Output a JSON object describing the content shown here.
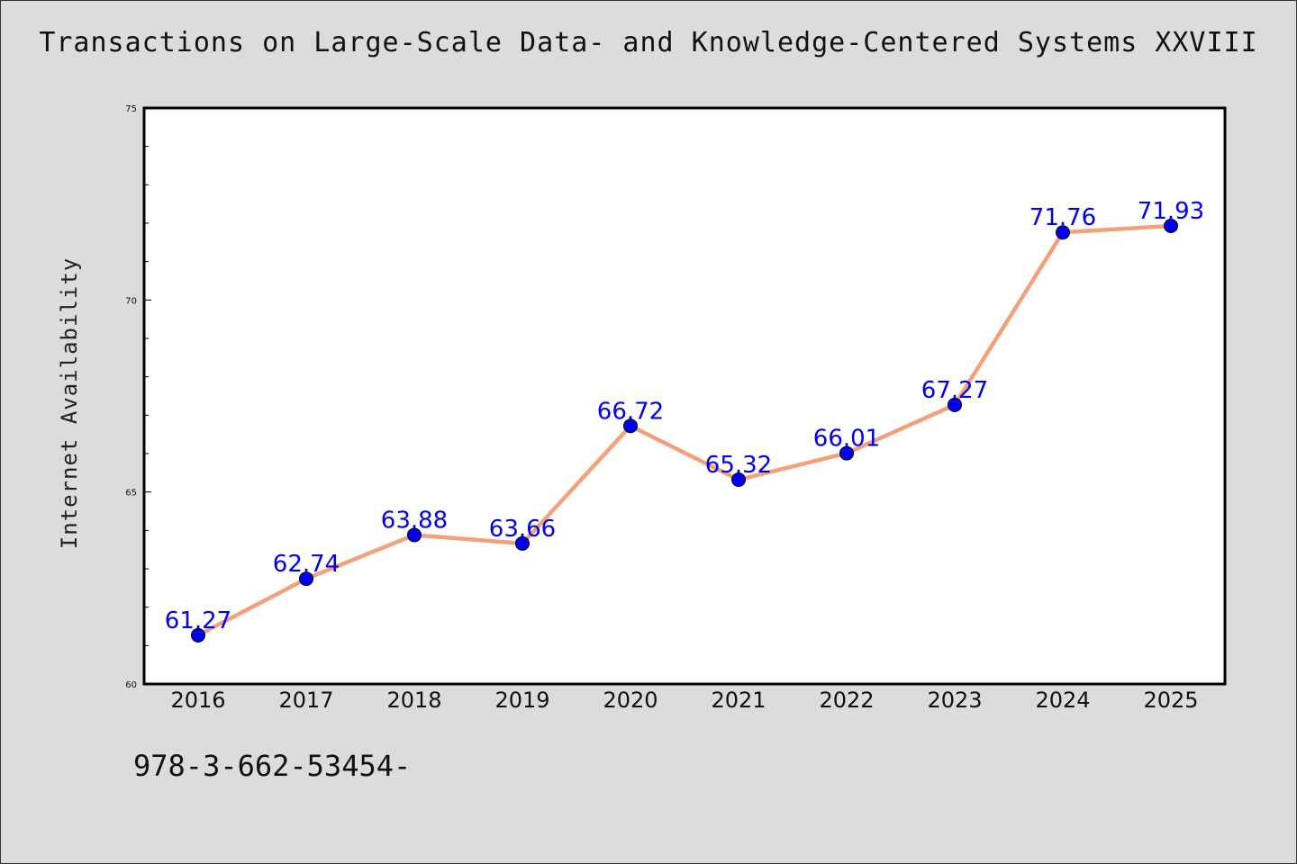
{
  "title": "Transactions on Large-Scale Data- and Knowledge-Centered Systems XXVIII",
  "footer_text": "978-3-662-53454-",
  "colors": {
    "background": "#dcdcdc",
    "plot_background": "#ffffff",
    "line": "#f4a07a",
    "marker": "#0000ee",
    "data_label": "#0000ee"
  },
  "chart_data": {
    "type": "line",
    "title": "Transactions on Large-Scale Data- and Knowledge-Centered Systems XXVIII",
    "xlabel": "",
    "ylabel": "Internet Availability",
    "categories": [
      "2016",
      "2017",
      "2018",
      "2019",
      "2020",
      "2021",
      "2022",
      "2023",
      "2024",
      "2025"
    ],
    "series": [
      {
        "values": [
          61.27,
          62.74,
          63.88,
          63.66,
          66.72,
          65.32,
          66.01,
          67.27,
          71.76,
          71.93
        ],
        "labels": [
          "61.27",
          "62.74",
          "63.88",
          "63.66",
          "66.72",
          "65.32",
          "66.01",
          "67.27",
          "71.76",
          "71.93"
        ]
      }
    ],
    "ylim": [
      60,
      75
    ],
    "yticks": [
      "60",
      "65",
      "70",
      "75"
    ],
    "grid": false,
    "legend": "none"
  }
}
